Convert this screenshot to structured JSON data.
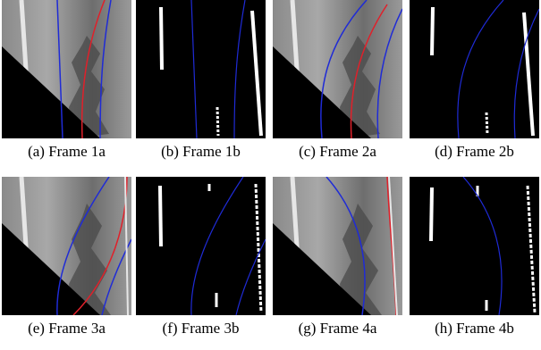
{
  "figure": {
    "panels": [
      {
        "caption": "(a) Frame 1a",
        "kind": "grayscale-road"
      },
      {
        "caption": "(b) Frame 1b",
        "kind": "binary-lane-mask"
      },
      {
        "caption": "(c) Frame 2a",
        "kind": "grayscale-road"
      },
      {
        "caption": "(d) Frame 2b",
        "kind": "binary-lane-mask"
      },
      {
        "caption": "(e) Frame 3a",
        "kind": "grayscale-road"
      },
      {
        "caption": "(f) Frame 3b",
        "kind": "binary-lane-mask"
      },
      {
        "caption": "(g) Frame 4a",
        "kind": "grayscale-road"
      },
      {
        "caption": "(h) Frame 4b",
        "kind": "binary-lane-mask"
      }
    ],
    "colors": {
      "lane_fit_blue": "#1f2bd6",
      "lane_fit_red": "#e0202a",
      "mask_background": "#000000",
      "lane_marking": "#ffffff"
    }
  }
}
